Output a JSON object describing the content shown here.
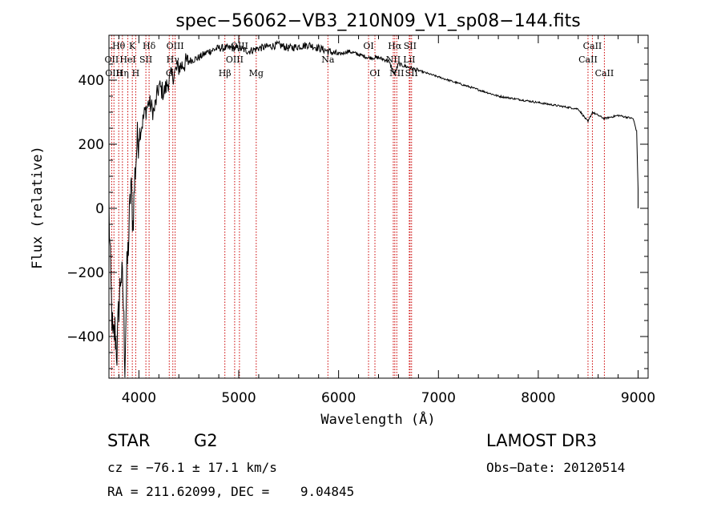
{
  "chart_data": {
    "type": "line",
    "title": "spec−56062−VB3_210N09_V1_sp08−144.fits",
    "xlabel": "Wavelength (Å)",
    "ylabel": "Flux (relative)",
    "xlim": [
      3700,
      9100
    ],
    "ylim": [
      -530,
      540
    ],
    "xticks": [
      4000,
      5000,
      6000,
      7000,
      8000,
      9000
    ],
    "xtick_labels": [
      "4000",
      "5000",
      "6000",
      "7000",
      "8000",
      "9000"
    ],
    "yticks": [
      -400,
      -200,
      0,
      200,
      400
    ],
    "ytick_labels": [
      "−400",
      "−200",
      "0",
      "200",
      "400"
    ],
    "series": [
      {
        "name": "spectrum",
        "x": [
          3700,
          3720,
          3740,
          3760,
          3780,
          3800,
          3820,
          3840,
          3860,
          3880,
          3900,
          3920,
          3940,
          3960,
          3980,
          4000,
          4030,
          4060,
          4100,
          4150,
          4200,
          4250,
          4300,
          4350,
          4400,
          4500,
          4600,
          4700,
          4800,
          4900,
          5000,
          5100,
          5200,
          5300,
          5400,
          5500,
          5600,
          5700,
          5800,
          5900,
          6000,
          6100,
          6200,
          6300,
          6400,
          6500,
          6560,
          6600,
          6700,
          6800,
          7000,
          7200,
          7400,
          7600,
          7800,
          8000,
          8200,
          8400,
          8498,
          8542,
          8600,
          8662,
          8800,
          8950,
          8985,
          9000
        ],
        "y": [
          0,
          -250,
          -420,
          -380,
          -450,
          -300,
          -200,
          -250,
          -480,
          -200,
          -80,
          80,
          -50,
          100,
          200,
          230,
          260,
          300,
          330,
          300,
          380,
          360,
          400,
          420,
          440,
          460,
          470,
          490,
          500,
          500,
          500,
          490,
          500,
          505,
          510,
          500,
          505,
          510,
          500,
          490,
          480,
          490,
          480,
          470,
          470,
          460,
          420,
          450,
          440,
          430,
          410,
          390,
          370,
          350,
          340,
          330,
          320,
          310,
          270,
          300,
          290,
          280,
          290,
          280,
          240,
          60
        ]
      }
    ],
    "lines": [
      {
        "label": "Hθ",
        "wl": 3798,
        "row": 1,
        "pos": "top"
      },
      {
        "label": "OII",
        "wl": 3727,
        "row": 2,
        "pos": "top"
      },
      {
        "label": "OIII",
        "wl": 3750,
        "row": 3,
        "pos": "top"
      },
      {
        "label": "Hη",
        "wl": 3835,
        "row": 3,
        "pos": "top"
      },
      {
        "label": "HeI",
        "wl": 3889,
        "row": 2,
        "pos": "top"
      },
      {
        "label": "K",
        "wl": 3934,
        "row": 1,
        "pos": "top"
      },
      {
        "label": "H",
        "wl": 3968,
        "row": 3,
        "pos": "top"
      },
      {
        "label": "SII",
        "wl": 4070,
        "row": 2,
        "pos": "top"
      },
      {
        "label": "Hδ",
        "wl": 4102,
        "row": 1,
        "pos": "top"
      },
      {
        "label": "OIII",
        "wl": 4363,
        "row": 1,
        "pos": "top"
      },
      {
        "label": "Hγ",
        "wl": 4340,
        "row": 2,
        "pos": "top"
      },
      {
        "label": "G",
        "wl": 4304,
        "row": 3,
        "pos": "top"
      },
      {
        "label": "OIII",
        "wl": 4959,
        "row": 2,
        "pos": "top"
      },
      {
        "label": "OIII",
        "wl": 5007,
        "row": 1,
        "pos": "top"
      },
      {
        "label": "Hβ",
        "wl": 4861,
        "row": 3,
        "pos": "top"
      },
      {
        "label": "Mg",
        "wl": 5175,
        "row": 3,
        "pos": "top"
      },
      {
        "label": "Na",
        "wl": 5893,
        "row": 2,
        "pos": "top"
      },
      {
        "label": "OI",
        "wl": 6300,
        "row": 1,
        "pos": "top"
      },
      {
        "label": "OI",
        "wl": 6364,
        "row": 3,
        "pos": "top"
      },
      {
        "label": "Hα",
        "wl": 6563,
        "row": 1,
        "pos": "top"
      },
      {
        "label": "NII",
        "wl": 6548,
        "row": 2,
        "pos": "top"
      },
      {
        "label": "NII",
        "wl": 6583,
        "row": 3,
        "pos": "top"
      },
      {
        "label": "SII",
        "wl": 6716,
        "row": 1,
        "pos": "top"
      },
      {
        "label": "LiI",
        "wl": 6708,
        "row": 2,
        "pos": "top"
      },
      {
        "label": "SII",
        "wl": 6731,
        "row": 3,
        "pos": "top"
      },
      {
        "label": "CaII",
        "wl": 8542,
        "row": 1,
        "pos": "top"
      },
      {
        "label": "CaII",
        "wl": 8498,
        "row": 2,
        "pos": "top"
      },
      {
        "label": "CaII",
        "wl": 8662,
        "row": 3,
        "pos": "top"
      }
    ]
  },
  "info": {
    "class": "STAR",
    "subclass": "G2",
    "survey": "LAMOST DR3",
    "cz": "cz = −76.1 ± 17.1 km/s",
    "obsdate": "Obs−Date: 20120514",
    "radec": "RA = 211.62099, DEC =    9.04845"
  },
  "colors": {
    "spectrum": "#000000",
    "lines": "#cc0000"
  }
}
